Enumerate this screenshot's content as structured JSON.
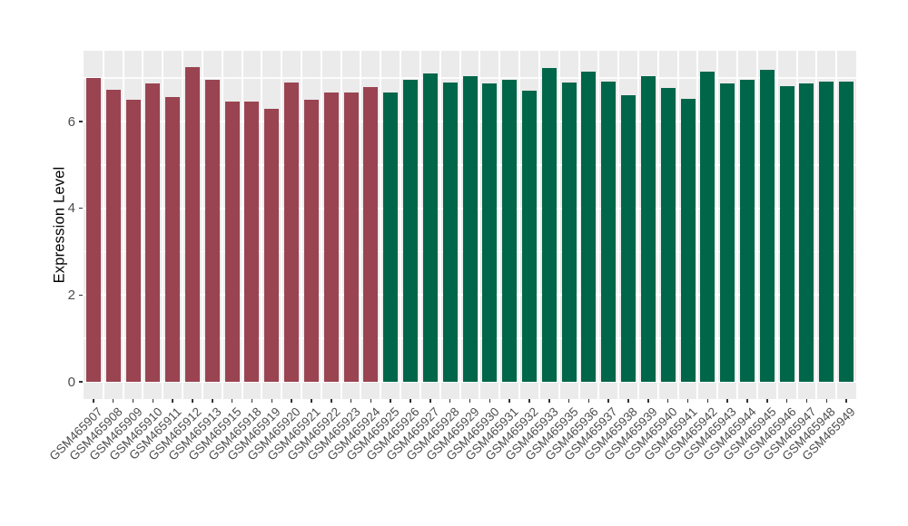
{
  "chart_data": {
    "type": "bar",
    "title": "",
    "ylabel": "Expression Level",
    "xlabel": "",
    "legend_position": "none",
    "grid": true,
    "y_axis": {
      "tick_labels": [
        "0",
        "2",
        "4",
        "6"
      ],
      "ticks": [
        0,
        2,
        4,
        6
      ],
      "minor_gridlines": [
        1,
        3,
        5,
        7
      ],
      "range": [
        0,
        7.64
      ]
    },
    "categories": [
      "GSM465907",
      "GSM465908",
      "GSM465909",
      "GSM465910",
      "GSM465911",
      "GSM465912",
      "GSM465913",
      "GSM465915",
      "GSM465918",
      "GSM465919",
      "GSM465920",
      "GSM465921",
      "GSM465922",
      "GSM465923",
      "GSM465924",
      "GSM465925",
      "GSM465926",
      "GSM465927",
      "GSM465928",
      "GSM465929",
      "GSM465930",
      "GSM465931",
      "GSM465932",
      "GSM465933",
      "GSM465935",
      "GSM465936",
      "GSM465937",
      "GSM465938",
      "GSM465939",
      "GSM465940",
      "GSM465941",
      "GSM465942",
      "GSM465943",
      "GSM465944",
      "GSM465945",
      "GSM465946",
      "GSM465947",
      "GSM465948",
      "GSM465949"
    ],
    "values": [
      7.01,
      6.73,
      6.51,
      6.88,
      6.57,
      7.26,
      6.96,
      6.45,
      6.45,
      6.29,
      6.9,
      6.5,
      6.66,
      6.66,
      6.79,
      6.67,
      6.96,
      7.11,
      6.9,
      7.04,
      6.87,
      6.96,
      6.71,
      7.23,
      6.89,
      7.15,
      6.91,
      6.61,
      7.04,
      6.78,
      6.52,
      7.15,
      6.88,
      6.96,
      7.2,
      6.82,
      6.88,
      6.92,
      6.91
    ],
    "bar_color_groups": [
      "red",
      "red",
      "red",
      "red",
      "red",
      "red",
      "red",
      "red",
      "red",
      "red",
      "red",
      "red",
      "red",
      "red",
      "red",
      "green",
      "green",
      "green",
      "green",
      "green",
      "green",
      "green",
      "green",
      "green",
      "green",
      "green",
      "green",
      "green",
      "green",
      "green",
      "green",
      "green",
      "green",
      "green",
      "green",
      "green",
      "green",
      "green",
      "green"
    ],
    "colors": {
      "red": "#9A4451",
      "green": "#00664A",
      "panel_background": "#EBEBEB",
      "major_gridline": "#FFFFFF",
      "minor_gridline": "#FFFFFF",
      "tick_mark": "#333333",
      "axis_text": "#4D4D4D",
      "axis_title": "#000000",
      "page_background": "#FFFFFF"
    }
  }
}
